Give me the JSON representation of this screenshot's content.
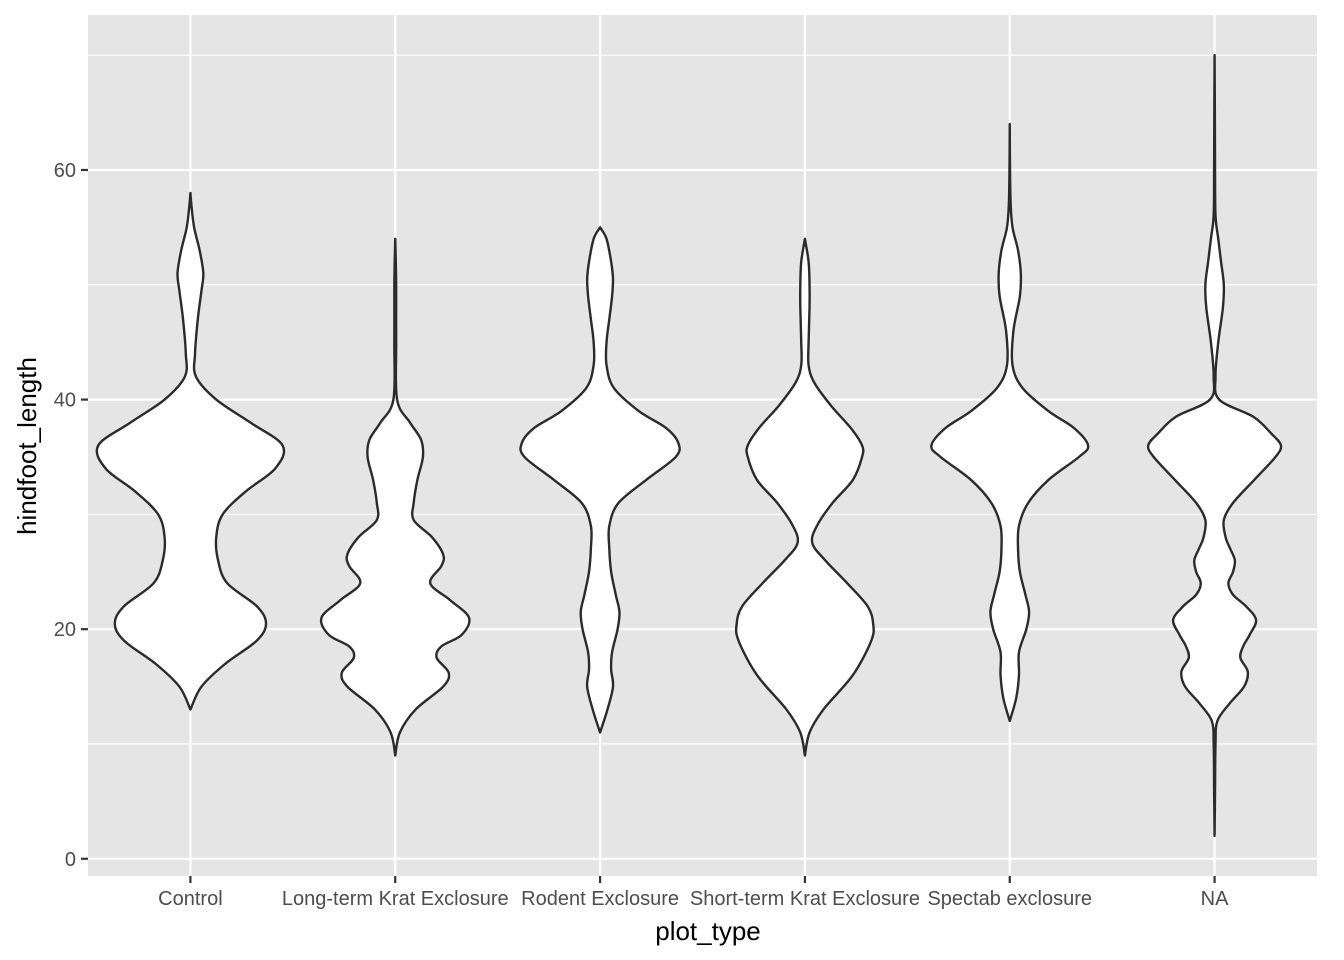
{
  "chart_data": {
    "type": "violin",
    "xlabel": "plot_type",
    "ylabel": "hindfoot_length",
    "categories": [
      "Control",
      "Long-term Krat Exclosure",
      "Rodent Exclosure",
      "Short-term Krat Exclosure",
      "Spectab exclosure",
      "NA"
    ],
    "ylim": [
      -1.5,
      73.5
    ],
    "y_ticks": [
      0,
      20,
      40,
      60
    ],
    "grid": true,
    "colors": {
      "panel": "#e5e5e5",
      "grid": "#ffffff",
      "fill": "#ffffff",
      "outline": "#2b2b2b"
    },
    "series": [
      {
        "category": "Control",
        "min": 13,
        "max": 58,
        "profile": [
          [
            13,
            0.0
          ],
          [
            15,
            0.12
          ],
          [
            17,
            0.38
          ],
          [
            19,
            0.72
          ],
          [
            20.5,
            0.82
          ],
          [
            22,
            0.72
          ],
          [
            24,
            0.4
          ],
          [
            26,
            0.3
          ],
          [
            28,
            0.28
          ],
          [
            30,
            0.35
          ],
          [
            32,
            0.6
          ],
          [
            34,
            0.92
          ],
          [
            36,
            1.0
          ],
          [
            38,
            0.65
          ],
          [
            40,
            0.28
          ],
          [
            42,
            0.06
          ],
          [
            44,
            0.05
          ],
          [
            47,
            0.08
          ],
          [
            49.5,
            0.12
          ],
          [
            51,
            0.14
          ],
          [
            53,
            0.1
          ],
          [
            55,
            0.04
          ],
          [
            57,
            0.01
          ],
          [
            58,
            0.0
          ]
        ]
      },
      {
        "category": "Long-term Krat Exclosure",
        "min": 9,
        "max": 54,
        "profile": [
          [
            9,
            0.0
          ],
          [
            11,
            0.05
          ],
          [
            13,
            0.22
          ],
          [
            15,
            0.52
          ],
          [
            16.2,
            0.58
          ],
          [
            17.5,
            0.45
          ],
          [
            18.5,
            0.5
          ],
          [
            19.5,
            0.72
          ],
          [
            21,
            0.8
          ],
          [
            22.5,
            0.6
          ],
          [
            24,
            0.38
          ],
          [
            25.5,
            0.5
          ],
          [
            26.5,
            0.52
          ],
          [
            28,
            0.4
          ],
          [
            29.5,
            0.2
          ],
          [
            31,
            0.2
          ],
          [
            33,
            0.24
          ],
          [
            35,
            0.3
          ],
          [
            36.5,
            0.28
          ],
          [
            38,
            0.16
          ],
          [
            40,
            0.02
          ],
          [
            45,
            0.01
          ],
          [
            50,
            0.01
          ],
          [
            54,
            0.0
          ]
        ]
      },
      {
        "category": "Rodent Exclosure",
        "min": 11,
        "max": 55,
        "profile": [
          [
            11,
            0.0
          ],
          [
            13,
            0.08
          ],
          [
            15,
            0.14
          ],
          [
            16.5,
            0.12
          ],
          [
            18,
            0.13
          ],
          [
            20,
            0.19
          ],
          [
            21.5,
            0.21
          ],
          [
            23,
            0.17
          ],
          [
            25,
            0.12
          ],
          [
            27,
            0.1
          ],
          [
            29,
            0.1
          ],
          [
            31,
            0.2
          ],
          [
            33,
            0.5
          ],
          [
            35,
            0.82
          ],
          [
            36.2,
            0.85
          ],
          [
            37.5,
            0.72
          ],
          [
            39,
            0.42
          ],
          [
            41,
            0.15
          ],
          [
            43,
            0.07
          ],
          [
            45,
            0.07
          ],
          [
            47,
            0.1
          ],
          [
            49,
            0.13
          ],
          [
            50.5,
            0.14
          ],
          [
            52,
            0.12
          ],
          [
            54,
            0.07
          ],
          [
            55,
            0.0
          ]
        ]
      },
      {
        "category": "Short-term Krat Exclosure",
        "min": 9,
        "max": 54,
        "profile": [
          [
            9,
            0.0
          ],
          [
            11,
            0.05
          ],
          [
            13,
            0.2
          ],
          [
            16,
            0.52
          ],
          [
            19,
            0.72
          ],
          [
            20.5,
            0.74
          ],
          [
            22,
            0.68
          ],
          [
            24,
            0.46
          ],
          [
            26,
            0.22
          ],
          [
            27.5,
            0.08
          ],
          [
            29,
            0.13
          ],
          [
            31,
            0.3
          ],
          [
            33,
            0.52
          ],
          [
            35,
            0.62
          ],
          [
            36,
            0.62
          ],
          [
            37.5,
            0.5
          ],
          [
            39.5,
            0.28
          ],
          [
            41.5,
            0.1
          ],
          [
            43,
            0.04
          ],
          [
            45,
            0.04
          ],
          [
            48,
            0.05
          ],
          [
            50,
            0.05
          ],
          [
            52,
            0.04
          ],
          [
            54,
            0.0
          ]
        ]
      },
      {
        "category": "Spectab exclosure",
        "min": 12,
        "max": 64,
        "profile": [
          [
            12,
            0.0
          ],
          [
            14,
            0.07
          ],
          [
            16,
            0.1
          ],
          [
            18,
            0.1
          ],
          [
            20,
            0.18
          ],
          [
            21.5,
            0.21
          ],
          [
            23,
            0.17
          ],
          [
            25,
            0.11
          ],
          [
            27,
            0.09
          ],
          [
            29,
            0.1
          ],
          [
            31,
            0.2
          ],
          [
            33,
            0.42
          ],
          [
            35,
            0.75
          ],
          [
            36,
            0.85
          ],
          [
            37.5,
            0.7
          ],
          [
            39,
            0.42
          ],
          [
            41,
            0.14
          ],
          [
            43,
            0.03
          ],
          [
            46,
            0.04
          ],
          [
            49,
            0.11
          ],
          [
            51,
            0.12
          ],
          [
            53,
            0.09
          ],
          [
            55,
            0.03
          ],
          [
            57,
            0.01
          ],
          [
            60,
            0.003
          ],
          [
            64,
            0.0
          ]
        ]
      },
      {
        "category": "NA",
        "min": 2,
        "max": 70,
        "profile": [
          [
            2,
            0.0
          ],
          [
            6,
            0.005
          ],
          [
            10,
            0.01
          ],
          [
            12,
            0.03
          ],
          [
            13.5,
            0.16
          ],
          [
            15,
            0.32
          ],
          [
            16.3,
            0.36
          ],
          [
            17.5,
            0.28
          ],
          [
            18.5,
            0.31
          ],
          [
            19.5,
            0.38
          ],
          [
            20.8,
            0.45
          ],
          [
            22,
            0.34
          ],
          [
            23,
            0.2
          ],
          [
            24,
            0.15
          ],
          [
            25,
            0.2
          ],
          [
            26,
            0.22
          ],
          [
            27,
            0.17
          ],
          [
            28,
            0.12
          ],
          [
            29.5,
            0.1
          ],
          [
            31,
            0.2
          ],
          [
            33,
            0.43
          ],
          [
            35,
            0.66
          ],
          [
            36,
            0.72
          ],
          [
            37,
            0.62
          ],
          [
            38.5,
            0.42
          ],
          [
            40,
            0.05
          ],
          [
            42,
            0.01
          ],
          [
            45,
            0.04
          ],
          [
            48,
            0.09
          ],
          [
            50,
            0.1
          ],
          [
            52,
            0.07
          ],
          [
            54,
            0.04
          ],
          [
            56,
            0.01
          ],
          [
            60,
            0.005
          ],
          [
            65,
            0.003
          ],
          [
            70,
            0.0
          ]
        ]
      }
    ]
  }
}
